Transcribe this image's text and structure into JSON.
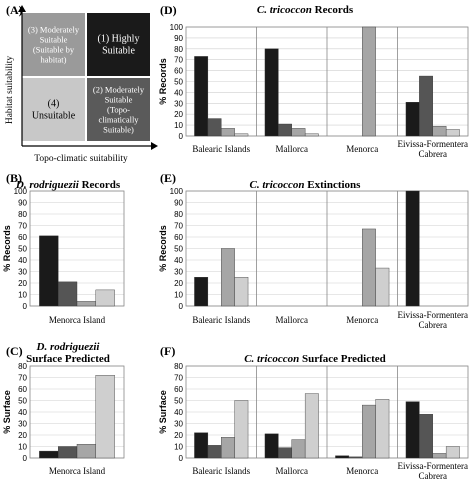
{
  "panel_a": {
    "label": "(A)",
    "y_axis_label": "Habitat suitability",
    "x_axis_label": "Topo-climatic suitability",
    "quadrants": [
      {
        "key": "q3",
        "lines": [
          "(3) Moderately",
          "Suitable",
          "(Suitable by",
          "habitat)"
        ],
        "color": "#9a9a9a",
        "text_color": "#ffffff"
      },
      {
        "key": "q1",
        "lines": [
          "(1) Highly",
          "Suitable"
        ],
        "color": "#1a1a1a",
        "text_color": "#ffffff"
      },
      {
        "key": "q4",
        "lines": [
          "(4)",
          "Unsuitable"
        ],
        "color": "#c8c8c8",
        "text_color": "#000000"
      },
      {
        "key": "q2",
        "lines": [
          "(2) Moderately",
          "Suitable",
          "(Topo-",
          "climatically",
          "Suitable)"
        ],
        "color": "#5a5a5a",
        "text_color": "#ffffff"
      }
    ]
  },
  "series_colors": [
    "#1a1a1a",
    "#555555",
    "#a6a6a6",
    "#cfcfcf"
  ],
  "chart_data": [
    {
      "id": "D",
      "panel_label": "(D)",
      "type": "bar",
      "title_italic": "C. tricoccon",
      "title_rest": " Records",
      "ylabel": "% Records",
      "ylim": [
        0,
        100
      ],
      "yticks": [
        0,
        10,
        20,
        30,
        40,
        50,
        60,
        70,
        80,
        90,
        100
      ],
      "categories": [
        "Balearic Islands",
        "Mallorca",
        "Menorca",
        "Eivissa-Formentera Cabrera"
      ],
      "values": [
        [
          73,
          16,
          7,
          2
        ],
        [
          80,
          11,
          7,
          2
        ],
        [
          0,
          0,
          100,
          0
        ],
        [
          31,
          55,
          9,
          6
        ]
      ]
    },
    {
      "id": "B",
      "panel_label": "(B)",
      "type": "bar",
      "title_italic": "D. rodriguezii",
      "title_rest": " Records",
      "ylabel": "% Records",
      "ylim": [
        0,
        100
      ],
      "yticks": [
        0,
        10,
        20,
        30,
        40,
        50,
        60,
        70,
        80,
        90,
        100
      ],
      "categories": [
        "Menorca Island"
      ],
      "values": [
        [
          61,
          21,
          4,
          14
        ]
      ]
    },
    {
      "id": "E",
      "panel_label": "(E)",
      "type": "bar",
      "title_italic": "C. tricoccon",
      "title_rest": " Extinctions",
      "ylabel": "% Records",
      "ylim": [
        0,
        100
      ],
      "yticks": [
        0,
        10,
        20,
        30,
        40,
        50,
        60,
        70,
        80,
        90,
        100
      ],
      "categories": [
        "Balearic Islands",
        "Mallorca",
        "Menorca",
        "Eivissa-Formentera Cabrera"
      ],
      "values": [
        [
          25,
          0,
          50,
          25
        ],
        [
          0,
          0,
          0,
          0
        ],
        [
          0,
          0,
          67,
          33
        ],
        [
          100,
          0,
          0,
          0
        ]
      ]
    },
    {
      "id": "C",
      "panel_label": "(C)",
      "type": "bar",
      "title_italic": "D. rodriguezii",
      "title_rest": "Surface Predicted",
      "ylabel": "% Surface",
      "ylim": [
        0,
        80
      ],
      "yticks": [
        0,
        10,
        20,
        30,
        40,
        50,
        60,
        70,
        80
      ],
      "categories": [
        "Menorca Island"
      ],
      "values": [
        [
          6,
          10,
          12,
          72
        ]
      ]
    },
    {
      "id": "F",
      "panel_label": "(F)",
      "type": "bar",
      "title_italic": "C. tricoccon",
      "title_rest": " Surface Predicted",
      "ylabel": "% Surface",
      "ylim": [
        0,
        80
      ],
      "yticks": [
        0,
        10,
        20,
        30,
        40,
        50,
        60,
        70,
        80
      ],
      "categories": [
        "Balearic Islands",
        "Mallorca",
        "Menorca",
        "Eivissa-Formentera Cabrera"
      ],
      "values": [
        [
          22,
          11,
          18,
          50
        ],
        [
          21,
          9,
          16,
          56
        ],
        [
          2,
          1,
          46,
          51
        ],
        [
          49,
          38,
          4,
          10
        ]
      ]
    }
  ]
}
